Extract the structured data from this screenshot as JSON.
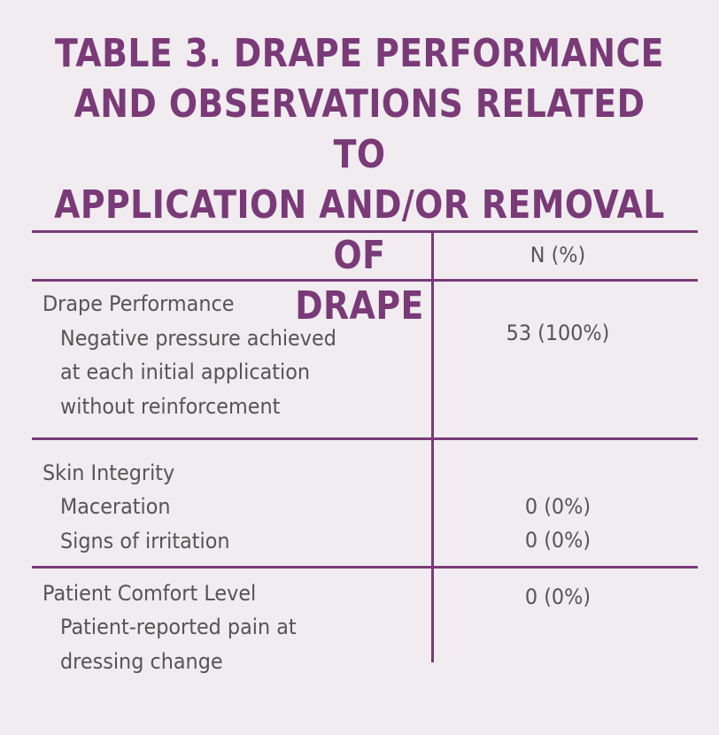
{
  "title_lines": [
    "TABLE 3. DRAPE PERFORMANCE",
    "AND OBSERVATIONS RELATED TO",
    "APPLICATION AND/OR REMOVAL OF",
    "DRAPE"
  ],
  "table": {
    "column_header": "N (%)",
    "sections": [
      {
        "heading": "Drape Performance",
        "rows": [
          {
            "label_lines": [
              "Negative pressure achieved",
              "at each initial application",
              "without reinforcement"
            ],
            "value": "53 (100%)"
          }
        ]
      },
      {
        "heading": "Skin Integrity",
        "rows": [
          {
            "label_lines": [
              "Maceration"
            ],
            "value": "0 (0%)"
          },
          {
            "label_lines": [
              "Signs of irritation"
            ],
            "value": "0 (0%)"
          }
        ]
      },
      {
        "heading": "Patient Comfort Level",
        "rows": [
          {
            "label_lines": [
              "Patient-reported pain at",
              "dressing change"
            ],
            "value": "0 (0%)"
          }
        ]
      }
    ]
  },
  "colors": {
    "accent": "#7a3a78",
    "text": "#555555",
    "background": "#f0ecef"
  }
}
